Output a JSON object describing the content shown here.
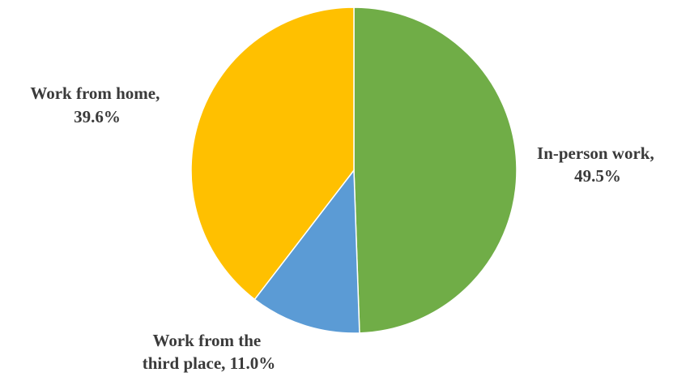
{
  "chart_data": {
    "type": "pie",
    "title": "",
    "start_angle_deg": 0,
    "direction": "clockwise",
    "slices": [
      {
        "label_lines": [
          "In-person work,",
          "49.5%"
        ],
        "name": "In-person work",
        "value": 49.5,
        "color": "#70AD47"
      },
      {
        "label_lines": [
          "Work from the",
          "third place, 11.0%"
        ],
        "name": "Work from the third place",
        "value": 11.0,
        "color": "#5B9BD5"
      },
      {
        "label_lines": [
          "Work from home,",
          "39.6%"
        ],
        "name": "Work from home",
        "value": 39.6,
        "color": "#FFC000"
      }
    ]
  }
}
